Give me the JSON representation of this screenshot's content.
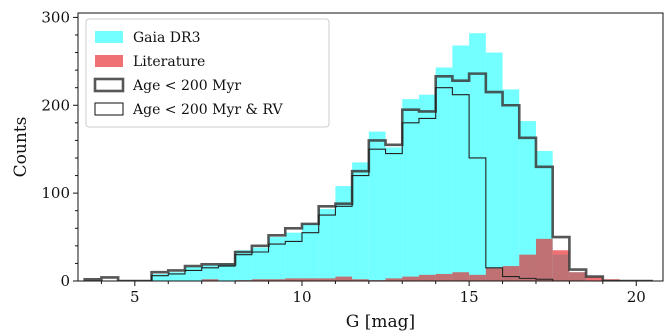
{
  "chart_data": {
    "type": "histogram",
    "xlabel": "G [mag]",
    "ylabel": "Counts",
    "xlim": [
      3.3,
      20.8
    ],
    "ylim": [
      0,
      305
    ],
    "xticks": [
      5,
      10,
      15,
      20
    ],
    "yticks": [
      0,
      100,
      200,
      300
    ],
    "bin_width": 0.5,
    "bin_start": 3.5,
    "series": [
      {
        "name": "Gaia DR3",
        "style": "filled",
        "color": "#00ffff",
        "opacity": 0.55,
        "values": [
          0,
          0,
          0,
          0,
          8,
          10,
          16,
          18,
          20,
          35,
          38,
          50,
          55,
          65,
          82,
          108,
          135,
          170,
          152,
          207,
          212,
          243,
          268,
          282,
          260,
          218,
          182,
          148,
          30,
          10,
          0,
          0,
          0,
          0
        ]
      },
      {
        "name": "Literature",
        "style": "filled",
        "color": "#e8252a",
        "opacity": 0.65,
        "values": [
          0,
          0,
          0,
          0,
          0,
          0,
          0,
          2,
          0,
          1,
          2,
          2,
          3,
          3,
          3,
          5,
          2,
          1,
          3,
          5,
          7,
          8,
          10,
          7,
          15,
          17,
          30,
          48,
          35,
          10,
          5,
          2,
          0,
          0
        ]
      },
      {
        "name": "Age < 200 Myr",
        "style": "step",
        "color": "#3a3a3a",
        "opacity": 0.85,
        "values": [
          2,
          4,
          0,
          0,
          10,
          12,
          17,
          19,
          19,
          33,
          40,
          52,
          60,
          65,
          85,
          88,
          125,
          160,
          155,
          195,
          193,
          233,
          228,
          236,
          215,
          200,
          163,
          130,
          50,
          13,
          5,
          0,
          0,
          0
        ]
      },
      {
        "name": "Age < 200 Myr & RV",
        "style": "step-thin",
        "color": "#222222",
        "opacity": 1.0,
        "values": [
          0,
          0,
          0,
          0,
          6,
          8,
          12,
          15,
          17,
          30,
          33,
          42,
          45,
          55,
          75,
          85,
          120,
          150,
          145,
          180,
          185,
          220,
          212,
          140,
          15,
          5,
          3,
          2,
          0,
          0,
          0,
          0,
          0,
          0
        ]
      }
    ],
    "legend": {
      "placement": "top-left",
      "entries": [
        "Gaia DR3",
        "Literature",
        "Age < 200 Myr",
        "Age < 200 Myr & RV"
      ]
    }
  }
}
